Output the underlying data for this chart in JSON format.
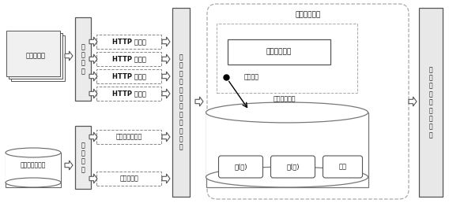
{
  "bg_color": "#ffffff",
  "label_jisuanji": "计算机磁盘",
  "label_diliwenku": "地理信息数据库",
  "label_xinxi": "信\n息\n抽\n取",
  "label_shuju": "数\n据\n构\n建",
  "label_http": "HTTP 协议头",
  "label_diliweizhimingcheng": "地理位置名称树",
  "label_quanzhong": "权重值链表",
  "label_center": "地\n理\n位\n置\n匹\n配\n并\n计\n算\n权\n重\n值",
  "label_shujuzidian": "数据字典结构",
  "label_suoyin": "数据字典索引",
  "label_jiedian_zhi": "节点指针",
  "label_shujuzidianjiedian": "数据字典节点",
  "label_sheng": "省(州)",
  "label_xian": "县(市)",
  "label_quanzhong2": "权重",
  "label_right": "字\n典\n排\n序\n并\n输\n出\n结\n果",
  "figsize": [
    5.68,
    2.58
  ],
  "dpi": 100
}
